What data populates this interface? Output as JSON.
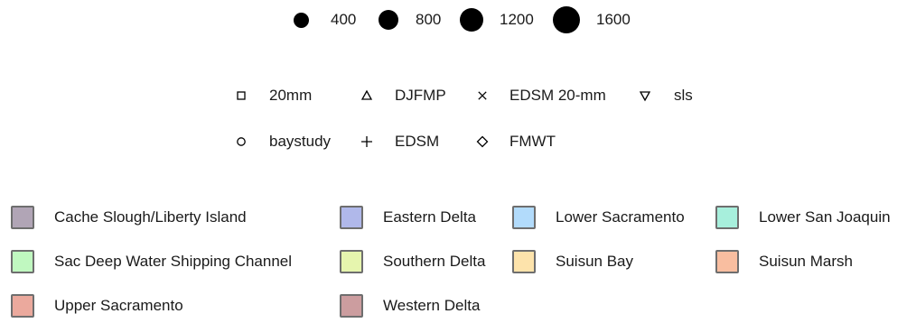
{
  "chart_data": {
    "type": "legend",
    "size_legend": [
      {
        "label": "400",
        "value": 400
      },
      {
        "label": "800",
        "value": 800
      },
      {
        "label": "1200",
        "value": 1200
      },
      {
        "label": "1600",
        "value": 1600
      }
    ],
    "shape_legend": [
      {
        "label": "20mm",
        "shape": "square"
      },
      {
        "label": "DJFMP",
        "shape": "triangle-up"
      },
      {
        "label": "EDSM 20-mm",
        "shape": "cross-x"
      },
      {
        "label": "sls",
        "shape": "triangle-down"
      },
      {
        "label": "baystudy",
        "shape": "circle"
      },
      {
        "label": "EDSM",
        "shape": "plus"
      },
      {
        "label": "FMWT",
        "shape": "diamond"
      }
    ],
    "fill_legend": [
      {
        "label": "Cache Slough/Liberty Island",
        "color": "#b1a5b6"
      },
      {
        "label": "Eastern Delta",
        "color": "#b0b8ea"
      },
      {
        "label": "Lower Sacramento",
        "color": "#b2dbfb"
      },
      {
        "label": "Lower San Joaquin",
        "color": "#a7efdc"
      },
      {
        "label": "Sac Deep Water Shipping Channel",
        "color": "#c0f8c0"
      },
      {
        "label": "Southern Delta",
        "color": "#e6f5ae"
      },
      {
        "label": "Suisun Bay",
        "color": "#fde3ab"
      },
      {
        "label": "Suisun Marsh",
        "color": "#f9bea0"
      },
      {
        "label": "Upper Sacramento",
        "color": "#eba99d"
      },
      {
        "label": "Western Delta",
        "color": "#cc9d9f"
      }
    ]
  }
}
